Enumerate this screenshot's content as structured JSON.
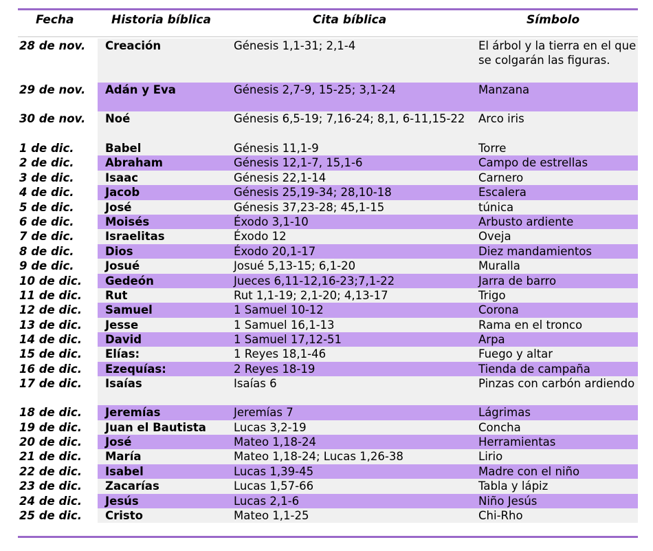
{
  "headers": {
    "date": "Fecha",
    "story": "Historia bíblica",
    "citation": "Cita bíblica",
    "symbol": "Símbolo"
  },
  "rows": [
    {
      "date": "28 de nov.",
      "story": "Creación",
      "citation": "Génesis 1,1-31; 2,1-4",
      "symbol": "El árbol y la tierra en el que se colgarán las figuras."
    },
    {
      "date": "29 de nov.",
      "story": "Adán y Eva",
      "citation": "Génesis 2,7-9, 15-25; 3,1-24",
      "symbol": "Manzana"
    },
    {
      "date": "30 de nov.",
      "story": "Noé",
      "citation": "Génesis 6,5-19; 7,16-24; 8,1, 6-11,15-22",
      "symbol": "Arco iris"
    },
    {
      "date": "1 de dic.",
      "story": "Babel",
      "citation": "Génesis 11,1-9",
      "symbol": "Torre"
    },
    {
      "date": "2 de dic.",
      "story": "Abraham",
      "citation": "Génesis 12,1-7, 15,1-6",
      "symbol": "Campo de estrellas"
    },
    {
      "date": "3 de dic.",
      "story": "Isaac",
      "citation": "Génesis 22,1-14",
      "symbol": "Carnero"
    },
    {
      "date": "4 de dic.",
      "story": "Jacob",
      "citation": "Génesis 25,19-34; 28,10-18",
      "symbol": "Escalera"
    },
    {
      "date": "5 de dic.",
      "story": "José",
      "citation": "Génesis 37,23-28; 45,1-15",
      "symbol": "túnica"
    },
    {
      "date": "6 de dic.",
      "story": "Moisés",
      "citation": "Éxodo 3,1-10",
      "symbol": "Arbusto ardiente"
    },
    {
      "date": "7 de dic.",
      "story": "Israelitas",
      "citation": "Éxodo 12",
      "symbol": "Oveja"
    },
    {
      "date": "8 de dic.",
      "story": "Dios",
      "citation": "Éxodo 20,1-17",
      "symbol": "Diez mandamientos"
    },
    {
      "date": "9 de dic.",
      "story": "Josué",
      "citation": "Josué 5,13-15; 6,1-20",
      "symbol": "Muralla"
    },
    {
      "date": "10 de dic.",
      "story": "Gedeón",
      "citation": "Jueces 6,11-12,16-23;7,1-22",
      "symbol": "Jarra de barro"
    },
    {
      "date": "11 de dic.",
      "story": "Rut",
      "citation": "Rut 1,1-19; 2,1-20; 4,13-17",
      "symbol": "Trigo"
    },
    {
      "date": "12 de dic.",
      "story": "Samuel",
      "citation": "1 Samuel 10-12",
      "symbol": "Corona"
    },
    {
      "date": "13 de dic.",
      "story": "Jesse",
      "citation": "1 Samuel 16,1-13",
      "symbol": "Rama en el tronco"
    },
    {
      "date": "14 de dic.",
      "story": "David",
      "citation": "1 Samuel 17,12-51",
      "symbol": "Arpa"
    },
    {
      "date": "15 de dic.",
      "story": "Elías:",
      "citation": "1 Reyes 18,1-46",
      "symbol": "Fuego y altar"
    },
    {
      "date": "16 de dic.",
      "story": "Ezequías:",
      "citation": "2 Reyes 18-19",
      "symbol": "Tienda de campaña"
    },
    {
      "date": "17 de dic.",
      "story": "Isaías",
      "citation": "Isaías 6",
      "symbol": "Pinzas con carbón ardiendo"
    },
    {
      "date": "18 de dic.",
      "story": "Jeremías",
      "citation": "Jeremías 7",
      "symbol": "Lágrimas"
    },
    {
      "date": "19 de dic.",
      "story": "Juan el Bautista",
      "citation": "Lucas 3,2-19",
      "symbol": "Concha"
    },
    {
      "date": "20 de dic.",
      "story": "José",
      "citation": "Mateo 1,18-24",
      "symbol": "Herramientas"
    },
    {
      "date": "21 de dic.",
      "story": "María",
      "citation": "Mateo 1,18-24; Lucas 1,26-38",
      "symbol": "Lirio"
    },
    {
      "date": "22 de dic.",
      "story": "Isabel",
      "citation": "Lucas 1,39-45",
      "symbol": "Madre con el niño"
    },
    {
      "date": "23 de dic.",
      "story": "Zacarías",
      "citation": "Lucas 1,57-66",
      "symbol": "Tabla y lápiz"
    },
    {
      "date": "24 de dic.",
      "story": "Jesús",
      "citation": "Lucas 2,1-6",
      "symbol": "Niño Jesús"
    },
    {
      "date": "25 de dic.",
      "story": "Cristo",
      "citation": "Mateo 1,1-25",
      "symbol": "Chi-Rho"
    }
  ]
}
